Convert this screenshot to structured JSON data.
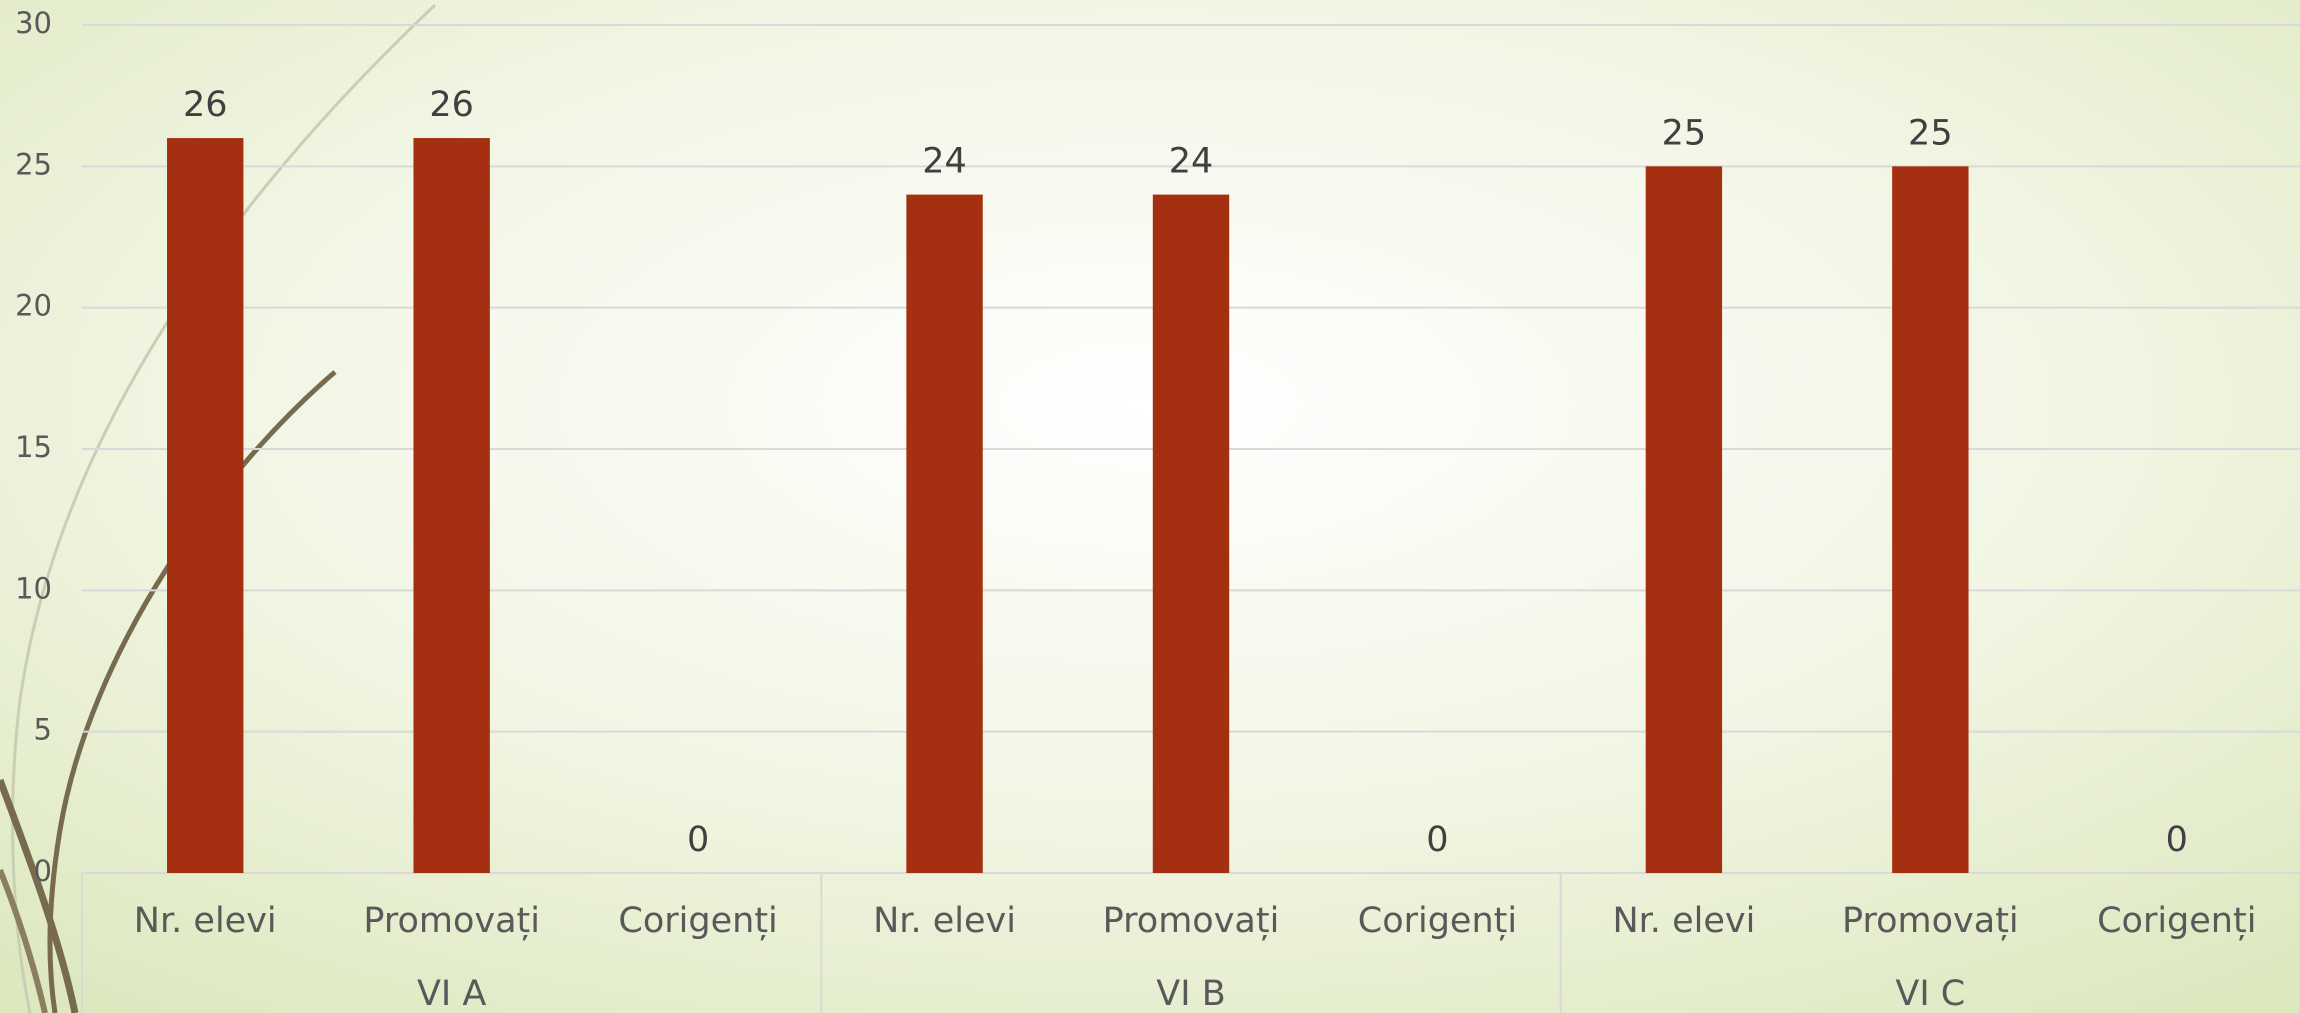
{
  "chart_data": {
    "type": "bar",
    "categories": [
      "Nr. elevi",
      "Promovați",
      "Corigenți",
      "Nr. elevi",
      "Promovați",
      "Corigenți",
      "Nr. elevi",
      "Promovați",
      "Corigenți"
    ],
    "groups": [
      "VI A",
      "VI B",
      "VI C"
    ],
    "values": [
      26,
      26,
      0,
      24,
      24,
      0,
      25,
      25,
      0
    ],
    "color": "#a52f11",
    "ylim": [
      0,
      30
    ],
    "yticks": [
      0,
      5,
      10,
      15,
      20,
      25,
      30
    ],
    "grid": true
  }
}
